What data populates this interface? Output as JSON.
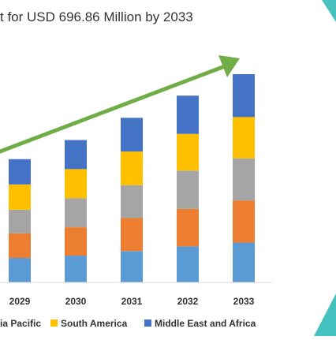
{
  "chart_data": {
    "type": "bar",
    "stacked": true,
    "title_partial": "t for USD 696.86 Million by 2033",
    "xlabel": "",
    "ylabel": "",
    "categories": [
      "2029",
      "2030",
      "2031",
      "2032",
      "2033"
    ],
    "ylim": [
      0,
      270
    ],
    "grid": false,
    "legend_position": "bottom",
    "series": [
      {
        "name": "",
        "color": "#5b9bd5",
        "values": [
          32,
          35,
          41,
          47,
          52
        ]
      },
      {
        "name": "",
        "color": "#ed7d31",
        "values": [
          32,
          37,
          43,
          49,
          55
        ]
      },
      {
        "name": "ia Pacific",
        "color": "#a5a5a5",
        "values": [
          31,
          38,
          43,
          50,
          55
        ]
      },
      {
        "name": "South America",
        "color": "#ffc000",
        "values": [
          33,
          38,
          44,
          48,
          54
        ]
      },
      {
        "name": "Middle East and Africa",
        "color": "#4472c4",
        "values": [
          33,
          38,
          44,
          50,
          56
        ]
      }
    ],
    "trend_arrow_color": "#70ad47",
    "accent_teal": "#45c2c0",
    "grey_shape": "#5a5f66"
  }
}
